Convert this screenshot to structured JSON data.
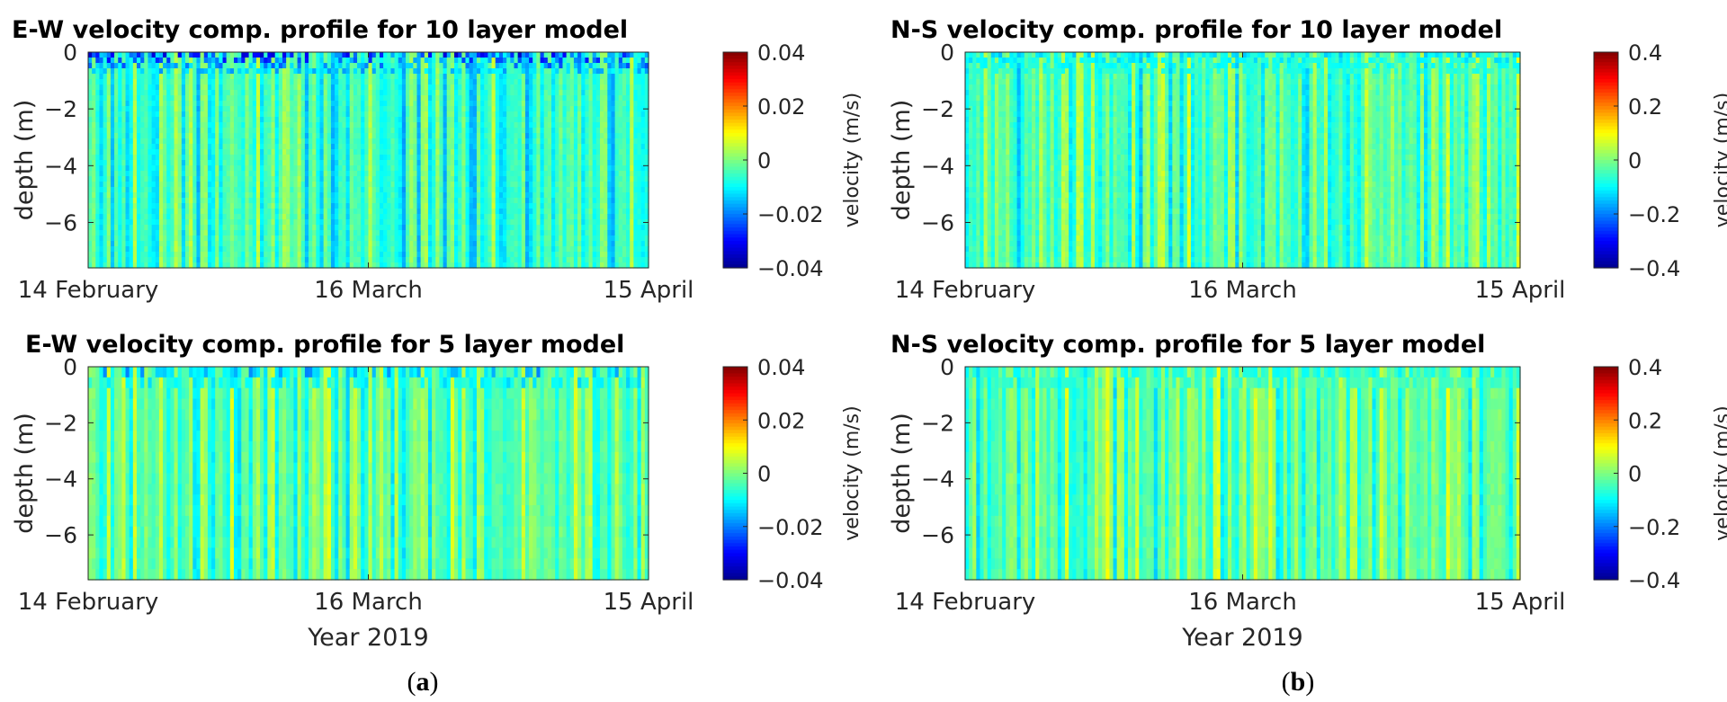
{
  "figure": {
    "panel_labels": [
      {
        "open": "(",
        "letter": "a",
        "close": ")"
      },
      {
        "open": "(",
        "letter": "b",
        "close": ")"
      }
    ]
  },
  "colors": {
    "colormap": "jet",
    "jet_stops": [
      "#00008f",
      "#0000ff",
      "#00ffff",
      "#7fff7f",
      "#ffff00",
      "#ff0000",
      "#800000"
    ],
    "axis": "#262626",
    "title": "#000000"
  },
  "chart_data": [
    {
      "type": "heatmap",
      "component": "E-W",
      "layers": 10,
      "title": "E-W velocity comp. profile for 10 layer model",
      "xlabel": "",
      "ylabel": "depth (m)",
      "x_ticklabels": [
        "14 February",
        "16 March",
        "15 April"
      ],
      "x_range_days": [
        0,
        60
      ],
      "ylim": [
        -7.6,
        0
      ],
      "y_ticks": [
        0,
        -2,
        -4,
        -6
      ],
      "y_ticklabels": [
        "0",
        "−2",
        "−4",
        "−6"
      ],
      "colorbar": {
        "label": "velocity (m/s)",
        "clim": [
          -0.04,
          0.04
        ],
        "ticks": [
          0.04,
          0.02,
          0,
          -0.02,
          -0.04
        ],
        "ticklabels": [
          "0.04",
          "0.02",
          "0",
          "−0.02",
          "−0.04"
        ]
      },
      "typical_value_ms": -0.006,
      "surface_min_ms": -0.035
    },
    {
      "type": "heatmap",
      "component": "N-S",
      "layers": 10,
      "title": "N-S velocity comp. profile for 10 layer model",
      "xlabel": "",
      "ylabel": "depth (m)",
      "x_ticklabels": [
        "14 February",
        "16 March",
        "15 April"
      ],
      "x_range_days": [
        0,
        60
      ],
      "ylim": [
        -7.6,
        0
      ],
      "y_ticks": [
        0,
        -2,
        -4,
        -6
      ],
      "y_ticklabels": [
        "0",
        "−2",
        "−4",
        "−6"
      ],
      "colorbar": {
        "label": "velocity (m/s)",
        "clim": [
          -0.4,
          0.4
        ],
        "ticks": [
          0.4,
          0.2,
          0,
          -0.2,
          -0.4
        ],
        "ticklabels": [
          "0.4",
          "0.2",
          "0",
          "−0.2",
          "−0.4"
        ]
      },
      "typical_value_ms": -0.04,
      "surface_min_ms": -0.15
    },
    {
      "type": "heatmap",
      "component": "E-W",
      "layers": 5,
      "title": "E-W velocity comp. profile for 5 layer model",
      "xlabel": "Year 2019",
      "ylabel": "depth (m)",
      "x_ticklabels": [
        "14 February",
        "16 March",
        "15 April"
      ],
      "x_range_days": [
        0,
        60
      ],
      "ylim": [
        -7.6,
        0
      ],
      "y_ticks": [
        0,
        -2,
        -4,
        -6
      ],
      "y_ticklabels": [
        "0",
        "−2",
        "−4",
        "−6"
      ],
      "colorbar": {
        "label": "velocity (m/s)",
        "clim": [
          -0.04,
          0.04
        ],
        "ticks": [
          0.04,
          0.02,
          0,
          -0.02,
          -0.04
        ],
        "ticklabels": [
          "0.04",
          "0.02",
          "0",
          "−0.02",
          "−0.04"
        ]
      },
      "typical_value_ms": -0.003,
      "surface_min_ms": -0.02
    },
    {
      "type": "heatmap",
      "component": "N-S",
      "layers": 5,
      "title": "N-S velocity comp. profile for 5 layer model",
      "xlabel": "Year 2019",
      "ylabel": "depth (m)",
      "x_ticklabels": [
        "14 February",
        "16 March",
        "15 April"
      ],
      "x_range_days": [
        0,
        60
      ],
      "ylim": [
        -7.6,
        0
      ],
      "y_ticks": [
        0,
        -2,
        -4,
        -6
      ],
      "y_ticklabels": [
        "0",
        "−2",
        "−4",
        "−6"
      ],
      "colorbar": {
        "label": "velocity (m/s)",
        "clim": [
          -0.4,
          0.4
        ],
        "ticks": [
          0.4,
          0.2,
          0,
          -0.2,
          -0.4
        ],
        "ticklabels": [
          "0.4",
          "0.2",
          "0",
          "−0.2",
          "−0.4"
        ]
      },
      "typical_value_ms": -0.02,
      "surface_min_ms": -0.1
    }
  ]
}
